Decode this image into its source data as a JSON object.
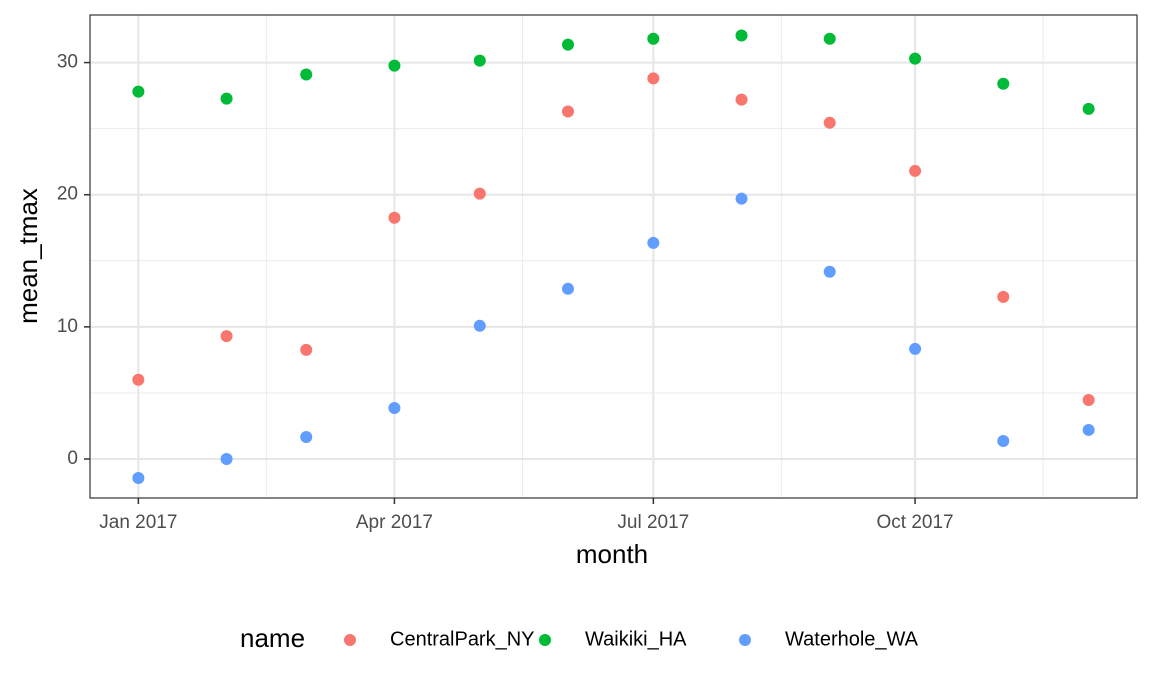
{
  "chart_data": {
    "type": "scatter",
    "xlabel": "month",
    "ylabel": "mean_tmax",
    "x": [
      "2017-01",
      "2017-02",
      "2017-03",
      "2017-04",
      "2017-05",
      "2017-06",
      "2017-07",
      "2017-08",
      "2017-09",
      "2017-10",
      "2017-11",
      "2017-12"
    ],
    "series": [
      {
        "name": "CentralPark_NY",
        "color": "#F8766D",
        "values": [
          6.0,
          9.3,
          8.26,
          18.26,
          20.08,
          26.3,
          28.8,
          27.2,
          25.45,
          21.8,
          12.27,
          4.47
        ]
      },
      {
        "name": "Waikiki_HA",
        "color": "#00BA38",
        "values": [
          27.8,
          27.27,
          29.1,
          29.77,
          30.15,
          31.36,
          31.8,
          32.05,
          31.8,
          30.3,
          28.4,
          26.5
        ]
      },
      {
        "name": "Waterhole_WA",
        "color": "#619CFF",
        "values": [
          -1.44,
          0,
          1.67,
          3.86,
          10.08,
          12.88,
          16.36,
          19.7,
          14.17,
          8.33,
          1.36,
          2.2
        ]
      }
    ],
    "xlim": [
      "2016-12-15",
      "2017-12-18"
    ],
    "xticks": [
      {
        "value": "2017-01",
        "label": "Jan 2017"
      },
      {
        "value": "2017-04",
        "label": "Apr 2017"
      },
      {
        "value": "2017-07",
        "label": "Jul 2017"
      },
      {
        "value": "2017-10",
        "label": "Oct 2017"
      }
    ],
    "ylim": [
      -2.95,
      33.6
    ],
    "yticks": [
      0,
      10,
      20,
      30
    ],
    "grid": true,
    "legend_title": "name",
    "legend_position": "bottom"
  }
}
